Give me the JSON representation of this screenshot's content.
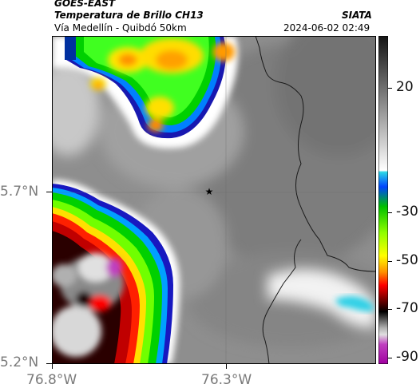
{
  "header": {
    "product": "GOES-EAST",
    "title": "Temperatura de Brillo CH13",
    "subtitle": "Vía Medellín - Quibdó 50km",
    "agency": "SIATA",
    "datetime": "2024-06-02 02:49"
  },
  "map": {
    "y_ticks": [
      "5.7°N",
      "5.2°N"
    ],
    "x_ticks": [
      "76.8°W",
      "76.3°W"
    ],
    "marker": "star-marker"
  },
  "colorbar": {
    "labels": [
      "20",
      "-30",
      "-50",
      "-70",
      "-90"
    ],
    "stops": [
      "#141414",
      "#ffffff",
      "#2bd8e6",
      "#00c000",
      "#ffff00",
      "#ff0000",
      "#000000",
      "#c0c0c0",
      "#c040c0"
    ]
  }
}
